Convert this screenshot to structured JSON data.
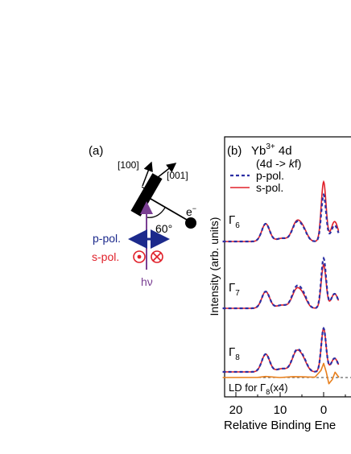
{
  "panel_a": {
    "label": "(a)",
    "dir_100": "[100]",
    "dir_001": "[001]",
    "electron_base": "e",
    "electron_sup": "−",
    "angle": "60°",
    "ppol_label": "p-pol.",
    "spol_label": "s-pol.",
    "photon_label": "hν",
    "colors": {
      "ppol": "#1c2a8c",
      "spol": "#e0202a",
      "photon": "#7a3f93",
      "sample": "#000000"
    }
  },
  "panel_b": {
    "label": "(b)",
    "ion_base": "Yb",
    "ion_sup": "3+",
    "ion_edge": " 4d",
    "transition_open": "(4d ->",
    "transition_k": "k",
    "transition_f": "f)",
    "legend_p": "p-pol.",
    "legend_s": "s-pol.",
    "state_1_base": "Γ",
    "state_1_sub": "6",
    "state_2_base": "Γ",
    "state_2_sub": "7",
    "state_3_base": "Γ",
    "state_3_sub": "8",
    "ld_prefix": "LD for Γ",
    "ld_sub": "8",
    "ld_suffix": "(x4)",
    "ylabel": "Intensity (arb. units)",
    "xlabel": "Relative Binding Ene",
    "colors": {
      "p": "#2b2fa3",
      "s": "#e0202a",
      "ld": "#e8801e"
    }
  },
  "chart_data": {
    "type": "line",
    "xlabel": "Relative Binding Ene",
    "ylabel": "Intensity (arb. units)",
    "x_ticks": [
      20,
      10,
      0
    ],
    "xlim": [
      23,
      -3.5
    ],
    "x_reversed": true,
    "series": [
      {
        "name": "p-pol.",
        "style": "dashed",
        "color": "#2b2fa3"
      },
      {
        "name": "s-pol.",
        "style": "solid",
        "color": "#e0202a"
      }
    ],
    "spectra": [
      {
        "state": "Γ6",
        "peaks": [
          {
            "x": 13.2,
            "p": 0.55,
            "s": 0.55
          },
          {
            "x": 9.5,
            "p": 0.1,
            "s": 0.1
          },
          {
            "x": 6.2,
            "p": 0.55,
            "s": 0.58
          },
          {
            "x": 4.6,
            "p": 0.3,
            "s": 0.32
          },
          {
            "x": 0.0,
            "p": 1.45,
            "s": 1.85
          },
          {
            "x": -2.5,
            "p": 0.5,
            "s": 0.62
          }
        ]
      },
      {
        "state": "Γ7",
        "peaks": [
          {
            "x": 13.2,
            "p": 0.52,
            "s": 0.52
          },
          {
            "x": 9.5,
            "p": 0.1,
            "s": 0.1
          },
          {
            "x": 6.2,
            "p": 0.62,
            "s": 0.56
          },
          {
            "x": 4.6,
            "p": 0.34,
            "s": 0.3
          },
          {
            "x": 0.0,
            "p": 1.55,
            "s": 1.35
          },
          {
            "x": -2.5,
            "p": 0.45,
            "s": 0.45
          }
        ]
      },
      {
        "state": "Γ8",
        "peaks": [
          {
            "x": 13.2,
            "p": 0.55,
            "s": 0.55
          },
          {
            "x": 9.5,
            "p": 0.1,
            "s": 0.1
          },
          {
            "x": 6.2,
            "p": 0.62,
            "s": 0.6
          },
          {
            "x": 4.6,
            "p": 0.32,
            "s": 0.3
          },
          {
            "x": 0.0,
            "p": 1.35,
            "s": 1.35
          },
          {
            "x": -2.5,
            "p": 0.42,
            "s": 0.42
          }
        ]
      }
    ],
    "ld_curve": {
      "name": "LD for Γ8 (x4)",
      "color": "#e8801e",
      "points": [
        [
          23,
          0
        ],
        [
          15,
          0.01
        ],
        [
          13.2,
          0.06
        ],
        [
          10,
          0.0
        ],
        [
          7,
          0.05
        ],
        [
          5,
          0.04
        ],
        [
          2,
          0.02
        ],
        [
          0.6,
          0.4
        ],
        [
          0,
          0.8
        ],
        [
          -0.6,
          0.3
        ],
        [
          -1.2,
          -0.35
        ],
        [
          -2,
          -0.1
        ],
        [
          -2.6,
          0.3
        ],
        [
          -3.5,
          0
        ]
      ]
    }
  }
}
